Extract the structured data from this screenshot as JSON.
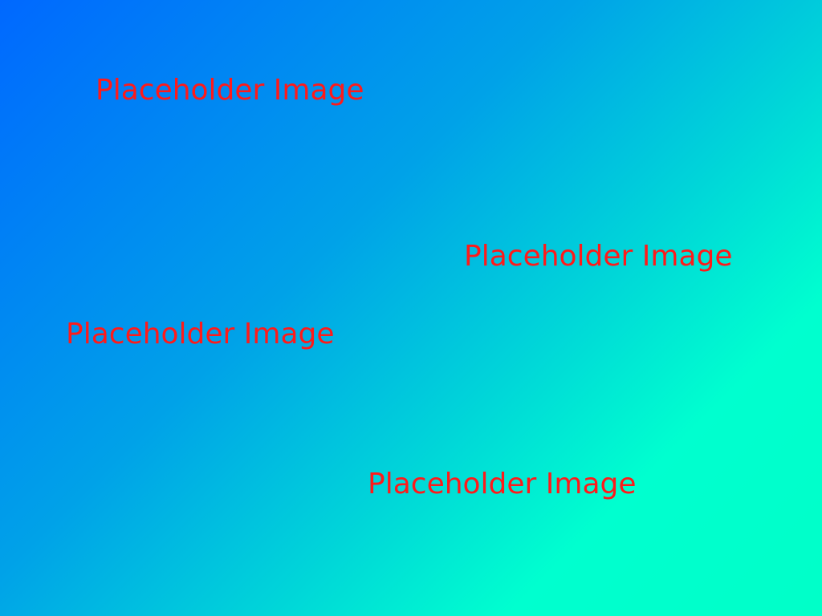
{
  "labels": [
    {
      "text": "Placeholder Image"
    },
    {
      "text": "Placeholder Image"
    },
    {
      "text": "Placeholder Image"
    },
    {
      "text": "Placeholder Image"
    }
  ],
  "colors": {
    "text": "#ff1a1a",
    "gradient_start": "#0068ff",
    "gradient_end": "#00ffc8"
  }
}
